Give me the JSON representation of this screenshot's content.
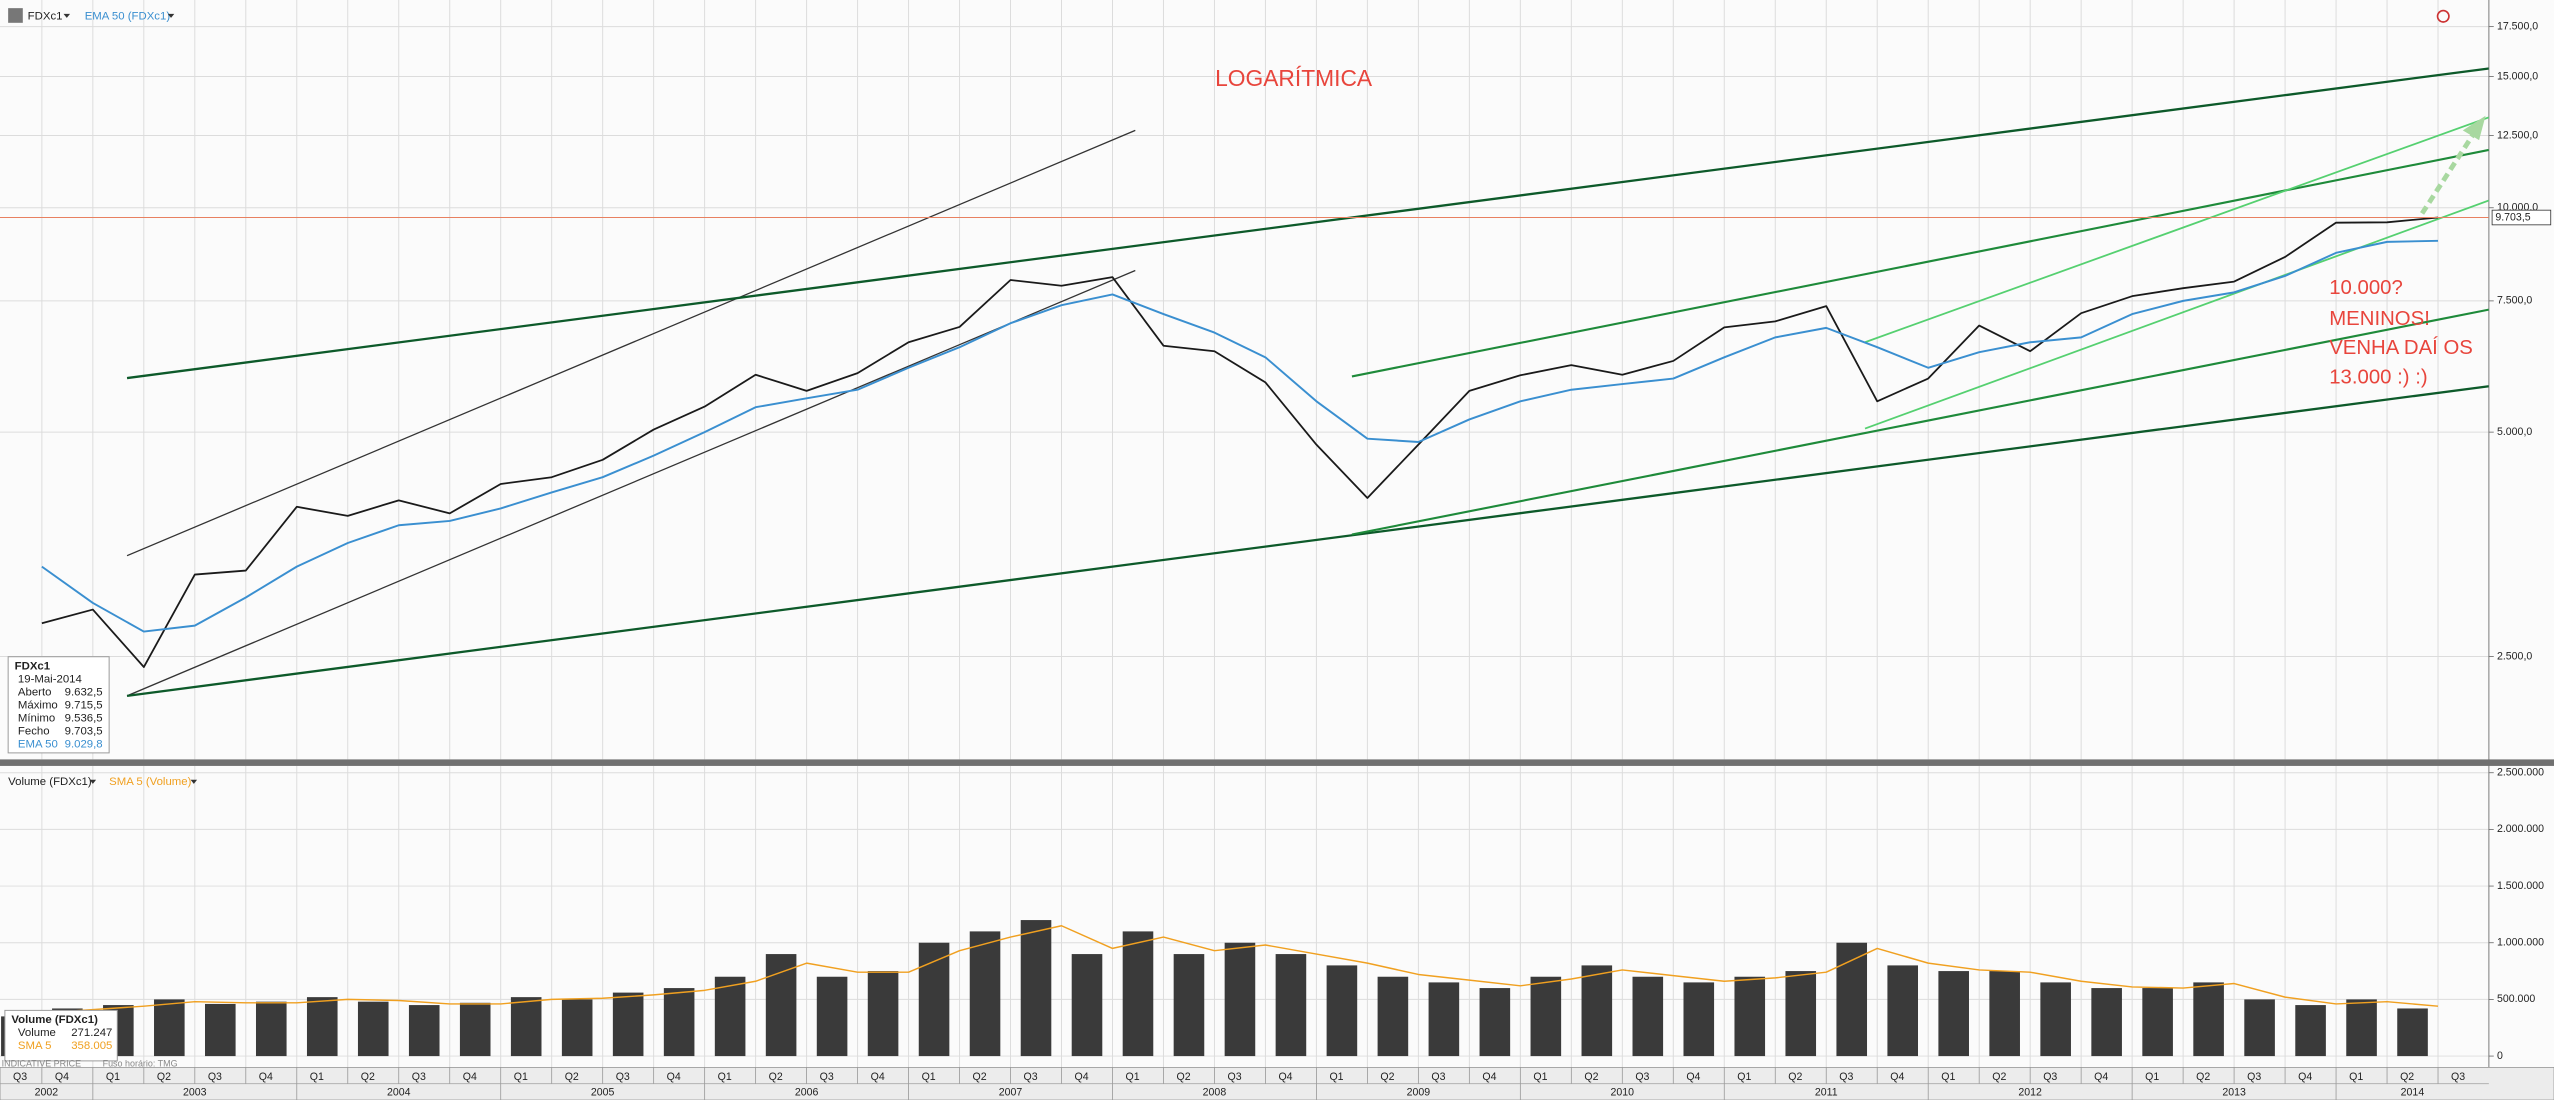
{
  "chart_data": [
    {
      "type": "line",
      "log_scale": true,
      "grid": true,
      "series": [
        {
          "name": "FDXc1",
          "color": "#1a1a1a",
          "values": [
            2770,
            2890,
            2420,
            3220,
            3260,
            3970,
            3860,
            4050,
            3890,
            4260,
            4350,
            4590,
            5040,
            5410,
            5970,
            5680,
            6000,
            6600,
            6920,
            8000,
            7860,
            8070,
            6530,
            6420,
            5830,
            4810,
            4080,
            4810,
            5680,
            5960,
            6150,
            5970,
            6230,
            6910,
            7040,
            7380,
            5500,
            5900,
            6950,
            6420,
            7220,
            7610,
            7800,
            7960,
            8590,
            9550,
            9560,
            9703.5,
            null
          ]
        },
        {
          "name": "EMA 50 (FDXc1)",
          "color": "#3a8fd0",
          "values": [
            3300,
            2950,
            2700,
            2750,
            3000,
            3300,
            3550,
            3750,
            3800,
            3950,
            4150,
            4350,
            4650,
            5000,
            5400,
            5550,
            5700,
            6100,
            6500,
            7000,
            7400,
            7650,
            7200,
            6800,
            6300,
            5500,
            4900,
            4850,
            5200,
            5500,
            5700,
            5800,
            5900,
            6300,
            6700,
            6900,
            6500,
            6100,
            6400,
            6600,
            6700,
            7200,
            7500,
            7700,
            8100,
            8700,
            9000,
            9029.8,
            null
          ]
        }
      ],
      "ylim": [
        1810,
        19000
      ],
      "yticks": [
        {
          "value": 2500,
          "label": "2.500,0"
        },
        {
          "value": 5000,
          "label": "5.000,0"
        },
        {
          "value": 7500,
          "label": "7.500,0"
        },
        {
          "value": 10000,
          "label": "10.000,0"
        },
        {
          "value": 12500,
          "label": "12.500,0"
        },
        {
          "value": 15000,
          "label": "15.000,0"
        },
        {
          "value": 17500,
          "label": "17.500,0"
        }
      ],
      "annotations": [
        "LOGARÍTMICA",
        "10.000?",
        "MENINOS!",
        "VENHA DAÍ OS",
        "13.000 :) :)"
      ],
      "data_box": {
        "date": "19-Mai-2014",
        "rows": [
          {
            "label": "Aberto",
            "value": "9.632,5"
          },
          {
            "label": "Máximo",
            "value": "9.715,5"
          },
          {
            "label": "Mínimo",
            "value": "9.536,5"
          },
          {
            "label": "Fecho",
            "value": "9.703,5"
          },
          {
            "label": "EMA 50",
            "value": "9.029,8"
          }
        ]
      }
    },
    {
      "type": "bar",
      "grid": true,
      "categories": [
        "Q3",
        "Q4",
        "Q1",
        "Q2",
        "Q3",
        "Q4",
        "Q1",
        "Q2",
        "Q3",
        "Q4",
        "Q1",
        "Q2",
        "Q3",
        "Q4",
        "Q1",
        "Q2",
        "Q3",
        "Q4",
        "Q1",
        "Q2",
        "Q3",
        "Q4",
        "Q1",
        "Q2",
        "Q3",
        "Q4",
        "Q1",
        "Q2",
        "Q3",
        "Q4",
        "Q1",
        "Q2",
        "Q3",
        "Q4",
        "Q1",
        "Q2",
        "Q3",
        "Q4",
        "Q1",
        "Q2",
        "Q3",
        "Q4",
        "Q1",
        "Q2",
        "Q3",
        "Q4",
        "Q1",
        "Q2",
        "Q3"
      ],
      "years": [
        2002,
        2003,
        2004,
        2005,
        2006,
        2007,
        2008,
        2009,
        2010,
        2011,
        2012,
        2013,
        2014
      ],
      "series": [
        {
          "name": "Volume (FDXc1)",
          "color": "#3a3a3a",
          "values": [
            350000,
            420000,
            450000,
            500000,
            460000,
            480000,
            520000,
            480000,
            450000,
            470000,
            520000,
            500000,
            560000,
            600000,
            700000,
            900000,
            700000,
            750000,
            1000000,
            1100000,
            1200000,
            900000,
            1100000,
            900000,
            1000000,
            900000,
            800000,
            700000,
            650000,
            600000,
            700000,
            800000,
            700000,
            650000,
            700000,
            750000,
            1000000,
            800000,
            750000,
            750000,
            650000,
            600000,
            600000,
            650000,
            500000,
            450000,
            500000,
            420000,
            null
          ]
        },
        {
          "name": "SMA 5 (Volume)",
          "color": "#f0a020",
          "type": "line",
          "values": [
            380000,
            410000,
            440000,
            480000,
            470000,
            470000,
            500000,
            490000,
            460000,
            460000,
            500000,
            510000,
            540000,
            580000,
            660000,
            820000,
            740000,
            740000,
            930000,
            1050000,
            1150000,
            950000,
            1050000,
            930000,
            980000,
            900000,
            820000,
            720000,
            670000,
            620000,
            680000,
            760000,
            710000,
            660000,
            690000,
            740000,
            950000,
            820000,
            760000,
            740000,
            660000,
            610000,
            600000,
            640000,
            520000,
            460000,
            480000,
            440000,
            null
          ]
        }
      ],
      "ylim": [
        -100000,
        2560000
      ],
      "yticks": [
        0,
        {
          "value": 500000,
          "label": "500.000"
        },
        {
          "value": 1000000,
          "label": "1.000.000"
        },
        {
          "value": 1500000,
          "label": "1.500.000"
        },
        {
          "value": 2000000,
          "label": "2.000.000"
        },
        {
          "value": 2500000,
          "label": "2.500.000"
        }
      ],
      "data_box": {
        "rows": [
          {
            "label": "Volume",
            "value": "271.247"
          },
          {
            "label": "SMA 5",
            "value": "358.005"
          }
        ]
      }
    }
  ],
  "footer": [
    "INDICATIVE PRICE",
    "Fuso horário: TMG"
  ]
}
